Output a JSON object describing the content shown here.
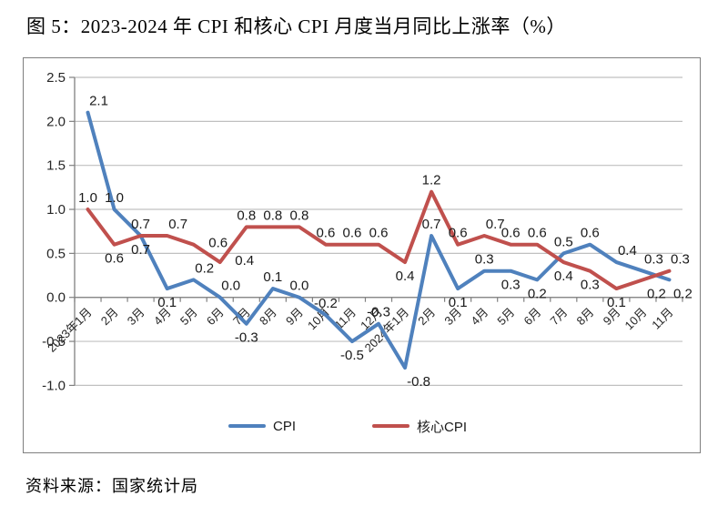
{
  "page": {
    "title": "图 5：2023-2024 年 CPI 和核心 CPI 月度当月同比上涨率（%）",
    "source": "资料来源：国家统计局"
  },
  "chart_data": {
    "type": "line",
    "title": "图 5：2023-2024 年 CPI 和核心 CPI 月度当月同比上涨率（%）",
    "xlabel": "",
    "ylabel": "",
    "ylim": [
      -1.0,
      2.5
    ],
    "ytick_step": 0.5,
    "yticks": [
      "2.5",
      "2.0",
      "1.5",
      "1.0",
      "0.5",
      "0.0",
      "-0.5",
      "-1.0"
    ],
    "grid": true,
    "data_labels": true,
    "legend_position": "bottom",
    "categories": [
      "2023年1月",
      "2月",
      "3月",
      "4月",
      "5月",
      "6月",
      "7月",
      "8月",
      "9月",
      "10月",
      "11月",
      "12月",
      "2024年1月",
      "2月",
      "3月",
      "4月",
      "5月",
      "6月",
      "7月",
      "8月",
      "9月",
      "10月",
      "11月"
    ],
    "series": [
      {
        "name": "CPI",
        "color": "#4F81BD",
        "values": [
          2.1,
          1.0,
          0.7,
          0.1,
          0.2,
          0.0,
          -0.3,
          0.1,
          0.0,
          -0.2,
          -0.5,
          -0.3,
          -0.8,
          0.7,
          0.1,
          0.3,
          0.3,
          0.2,
          0.5,
          0.6,
          0.4,
          0.3,
          0.2
        ]
      },
      {
        "name": "核心CPI",
        "color": "#C0504D",
        "values": [
          1.0,
          0.6,
          0.7,
          0.7,
          0.6,
          0.4,
          0.8,
          0.8,
          0.8,
          0.6,
          0.6,
          0.6,
          0.4,
          1.2,
          0.6,
          0.7,
          0.6,
          0.6,
          0.4,
          0.3,
          0.1,
          0.2,
          0.3
        ]
      }
    ]
  }
}
